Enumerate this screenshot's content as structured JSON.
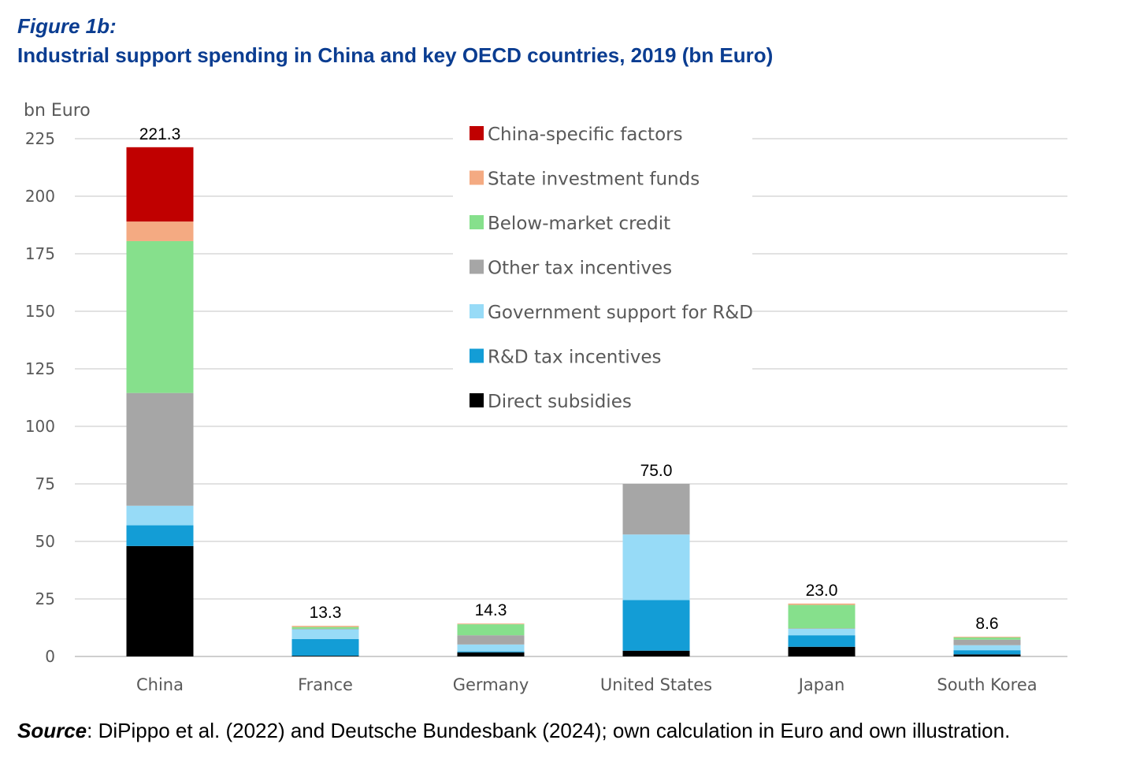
{
  "figure": {
    "label": "Figure 1b:",
    "title": "Industrial support spending in China and key OECD countries, 2019 (bn Euro)"
  },
  "source": {
    "label": "Source",
    "text": ": DiPippo et al. (2022) and Deutsche Bundesbank (2024); own calculation in Euro and own illustration."
  },
  "chart_data": {
    "type": "bar",
    "stacked": true,
    "ylabel": "bn Euro",
    "ylim": [
      0,
      225
    ],
    "yticks": [
      0,
      25,
      50,
      75,
      100,
      125,
      150,
      175,
      200,
      225
    ],
    "grid": true,
    "legend_position": "top-center",
    "categories": [
      "China",
      "France",
      "Germany",
      "United States",
      "Japan",
      "South Korea"
    ],
    "totals": [
      "221.3",
      "13.3",
      "14.3",
      "75.0",
      "23.0",
      "8.6"
    ],
    "series": [
      {
        "name": "Direct subsidies",
        "color": "#000000",
        "values": [
          48,
          0.3,
          1.8,
          2.5,
          4.2,
          0.9
        ]
      },
      {
        "name": "R&D tax incentives",
        "color": "#139dd6",
        "values": [
          9,
          7.3,
          0.4,
          22,
          5,
          1.8
        ]
      },
      {
        "name": "Government support for R&D",
        "color": "#97dbf7",
        "values": [
          8.5,
          4.2,
          3,
          28.5,
          2.8,
          2.2
        ]
      },
      {
        "name": "Other tax incentives",
        "color": "#a6a6a6",
        "values": [
          49,
          0.2,
          4,
          22,
          0.2,
          2.4
        ]
      },
      {
        "name": "Below-market credit",
        "color": "#86e08c",
        "values": [
          66,
          0.8,
          4.8,
          0,
          10.2,
          1
        ]
      },
      {
        "name": "State investment funds",
        "color": "#f4aa82",
        "values": [
          8.5,
          0.5,
          0.3,
          0,
          0.6,
          0.3
        ]
      },
      {
        "name": "China-specific factors",
        "color": "#c00000",
        "values": [
          32.3,
          0,
          0,
          0,
          0,
          0
        ]
      }
    ]
  }
}
